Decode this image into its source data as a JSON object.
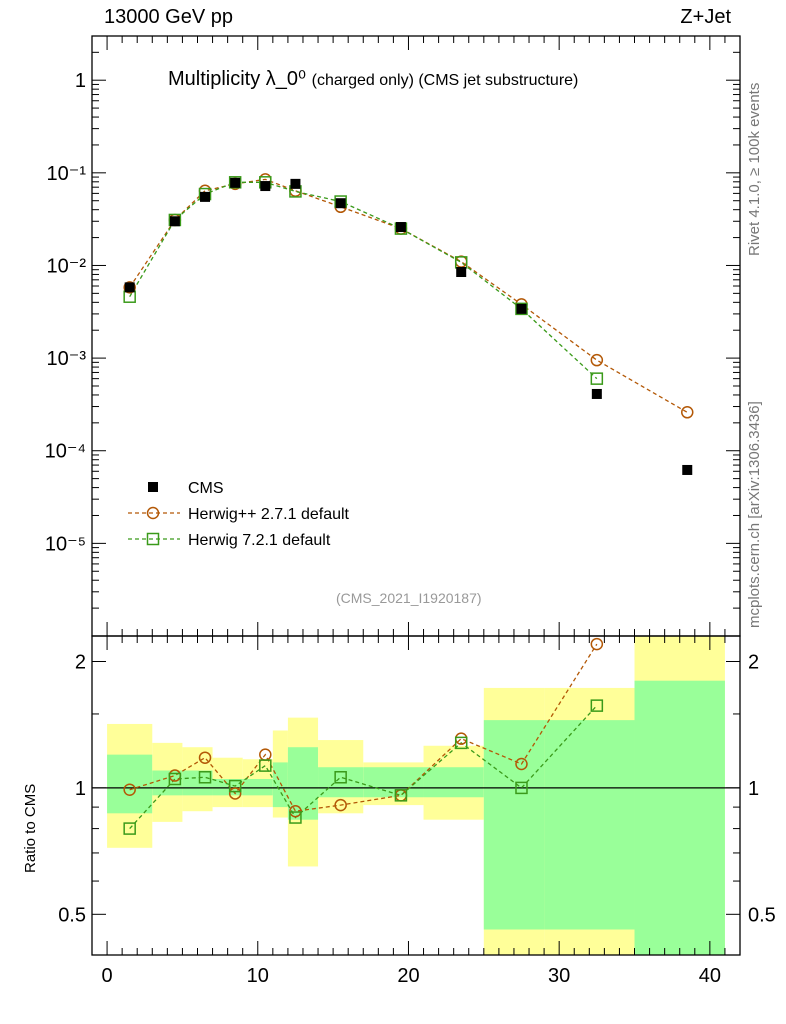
{
  "header": {
    "left": "13000 GeV pp",
    "right": "Z+Jet"
  },
  "title": {
    "main": "Multiplicity λ_0⁰",
    "sub": "(charged only) (CMS jet substructure)"
  },
  "side_labels": {
    "rivet": "Rivet 4.1.0, ≥ 100k events",
    "url": "mcplots.cern.ch [arXiv:1306.3436]"
  },
  "analysis_id": "(CMS_2021_I1920187)",
  "colors": {
    "cms": "#000000",
    "herwigpp": "#b35806",
    "herwig7": "#3a9a1a",
    "band_inner": "#99ff99",
    "band_outer": "#ffff99"
  },
  "chart_data": [
    {
      "type": "scatter",
      "panel": "main",
      "yscale": "log",
      "ylim": [
        1e-06,
        3.0
      ],
      "xlim": [
        -1,
        42
      ],
      "y_tick_labels": [
        "1",
        "10⁻¹",
        "10⁻²",
        "10⁻³",
        "10⁻⁴",
        "10⁻⁵"
      ],
      "legend_position": "bottom-left",
      "series": [
        {
          "name": "CMS",
          "x": [
            1.5,
            4.5,
            6.5,
            8.5,
            10.5,
            12.5,
            15.5,
            19.5,
            23.5,
            27.5,
            32.5,
            38.5
          ],
          "values": [
            0.0058,
            0.03,
            0.055,
            0.078,
            0.072,
            0.076,
            0.047,
            0.026,
            0.0085,
            0.0034,
            0.00041,
            6.2e-05
          ]
        },
        {
          "name": "Herwig++ 2.7.1 default",
          "x": [
            1.5,
            4.5,
            6.5,
            8.5,
            10.5,
            12.5,
            15.5,
            19.5,
            23.5,
            27.5,
            32.5,
            38.5
          ],
          "values": [
            0.0058,
            0.031,
            0.064,
            0.076,
            0.085,
            0.064,
            0.043,
            0.025,
            0.011,
            0.0038,
            0.00095,
            0.00026
          ]
        },
        {
          "name": "Herwig 7.2.1 default",
          "x": [
            1.5,
            4.5,
            6.5,
            8.5,
            10.5,
            12.5,
            15.5,
            19.5,
            23.5,
            27.5,
            32.5
          ],
          "values": [
            0.0046,
            0.031,
            0.059,
            0.079,
            0.079,
            0.063,
            0.049,
            0.025,
            0.0108,
            0.0034,
            0.0006
          ]
        }
      ]
    },
    {
      "type": "scatter",
      "panel": "ratio",
      "yscale": "log",
      "ylabel": "Ratio to CMS",
      "ylim": [
        0.4,
        2.3
      ],
      "xlim": [
        -1,
        42
      ],
      "y_tick_labels": [
        "2",
        "1",
        "0.5"
      ],
      "x_tick_labels": [
        "0",
        "10",
        "20",
        "30",
        "40"
      ],
      "bands": {
        "edges": [
          0,
          3,
          5,
          7,
          9,
          11,
          12,
          14,
          17,
          21,
          25,
          29,
          35,
          41
        ],
        "inner_lo": [
          0.87,
          0.96,
          0.96,
          0.96,
          0.96,
          0.9,
          0.84,
          0.95,
          0.95,
          0.95,
          0.46,
          0.46,
          0.35
        ],
        "inner_hi": [
          1.2,
          1.1,
          1.1,
          1.05,
          1.05,
          1.15,
          1.25,
          1.12,
          1.12,
          1.12,
          1.45,
          1.45,
          1.8
        ],
        "outer_lo": [
          0.72,
          0.83,
          0.88,
          0.9,
          0.9,
          0.85,
          0.65,
          0.87,
          0.91,
          0.84,
          0.4,
          0.4,
          0.35
        ],
        "outer_hi": [
          1.42,
          1.28,
          1.25,
          1.18,
          1.17,
          1.37,
          1.47,
          1.3,
          1.15,
          1.26,
          1.73,
          1.73,
          2.3
        ]
      },
      "series": [
        {
          "name": "Herwig++ 2.7.1 default",
          "x": [
            1.5,
            4.5,
            6.5,
            8.5,
            10.5,
            12.5,
            15.5,
            19.5,
            23.5,
            27.5,
            32.5
          ],
          "values": [
            0.99,
            1.07,
            1.18,
            0.97,
            1.2,
            0.88,
            0.91,
            0.96,
            1.31,
            1.14,
            2.2
          ]
        },
        {
          "name": "Herwig 7.2.1 default",
          "x": [
            1.5,
            4.5,
            6.5,
            8.5,
            10.5,
            12.5,
            15.5,
            19.5,
            23.5,
            27.5,
            32.5
          ],
          "values": [
            0.8,
            1.05,
            1.06,
            1.01,
            1.13,
            0.85,
            1.06,
            0.96,
            1.28,
            1.0,
            1.57
          ]
        }
      ]
    }
  ]
}
